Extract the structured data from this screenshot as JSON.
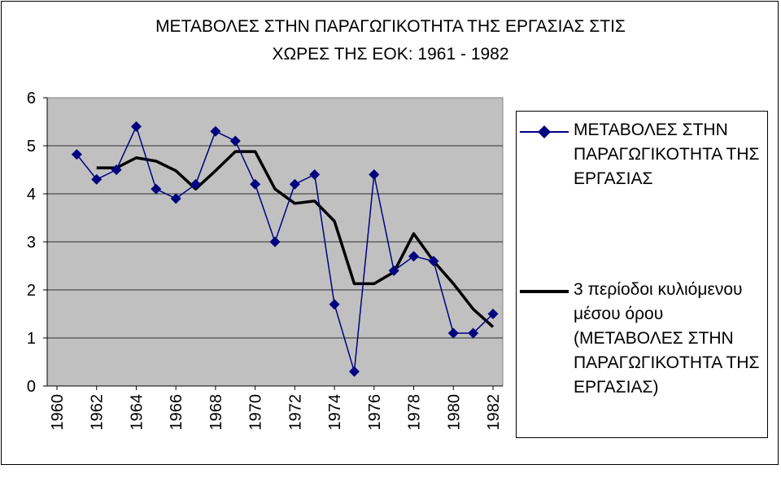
{
  "chart_data": {
    "type": "line",
    "title": "ΜΕΤΑΒΟΛΕΣ ΣΤΗΝ ΠΑΡΑΓΩΓΙΚΟΤΗΤΑ ΤΗΣ ΕΡΓΑΣΙΑΣ ΣΤΙΣ",
    "subtitle": "ΧΩΡΕΣ ΤΗΣ ΕΟΚ: 1961 - 1982",
    "xlabel": "",
    "ylabel": "",
    "ylim": [
      0,
      6
    ],
    "xlim": [
      1960,
      1982
    ],
    "y_ticks": [
      "0",
      "1",
      "2",
      "3",
      "4",
      "5",
      "6"
    ],
    "x_ticks": [
      "1960",
      "1962",
      "1964",
      "1966",
      "1968",
      "1970",
      "1972",
      "1974",
      "1976",
      "1978",
      "1980",
      "1982"
    ],
    "grid": true,
    "legend_position": "right",
    "series": [
      {
        "name": "ΜΕΤΑΒΟΛΕΣ ΣΤΗΝ ΠΑΡΑΓΩΓΙΚΟΤΗΤΑ ΤΗΣ ΕΡΓΑΣΙΑΣ",
        "color": "#000080",
        "marker": "diamond",
        "x": [
          1961,
          1962,
          1963,
          1964,
          1965,
          1966,
          1967,
          1968,
          1969,
          1970,
          1971,
          1972,
          1973,
          1974,
          1975,
          1976,
          1977,
          1978,
          1979,
          1980,
          1981,
          1982
        ],
        "values": [
          4.82,
          4.3,
          4.5,
          5.4,
          4.1,
          3.9,
          4.2,
          5.3,
          5.1,
          4.2,
          3.0,
          4.2,
          4.4,
          1.7,
          0.3,
          4.4,
          2.4,
          2.7,
          2.6,
          1.1,
          1.1,
          1.5
        ]
      },
      {
        "name": "3 περίοδοι κυλιόμενου μέσου όρου (ΜΕΤΑΒΟΛΕΣ ΣΤΗΝ ΠΑΡΑΓΩΓΙΚΟΤΗΤΑ ΤΗΣ ΕΡΓΑΣΙΑΣ)",
        "color": "#000000",
        "marker": "none",
        "x": [
          1962,
          1963,
          1964,
          1965,
          1966,
          1967,
          1968,
          1969,
          1970,
          1971,
          1972,
          1973,
          1974,
          1975,
          1976,
          1977,
          1978,
          1979,
          1980,
          1981,
          1982
        ],
        "values": [
          4.54,
          4.54,
          4.75,
          4.68,
          4.48,
          4.1,
          4.48,
          4.88,
          4.88,
          4.1,
          3.8,
          3.85,
          3.43,
          2.13,
          2.13,
          2.37,
          3.17,
          2.6,
          2.13,
          1.6,
          1.23
        ]
      }
    ]
  }
}
